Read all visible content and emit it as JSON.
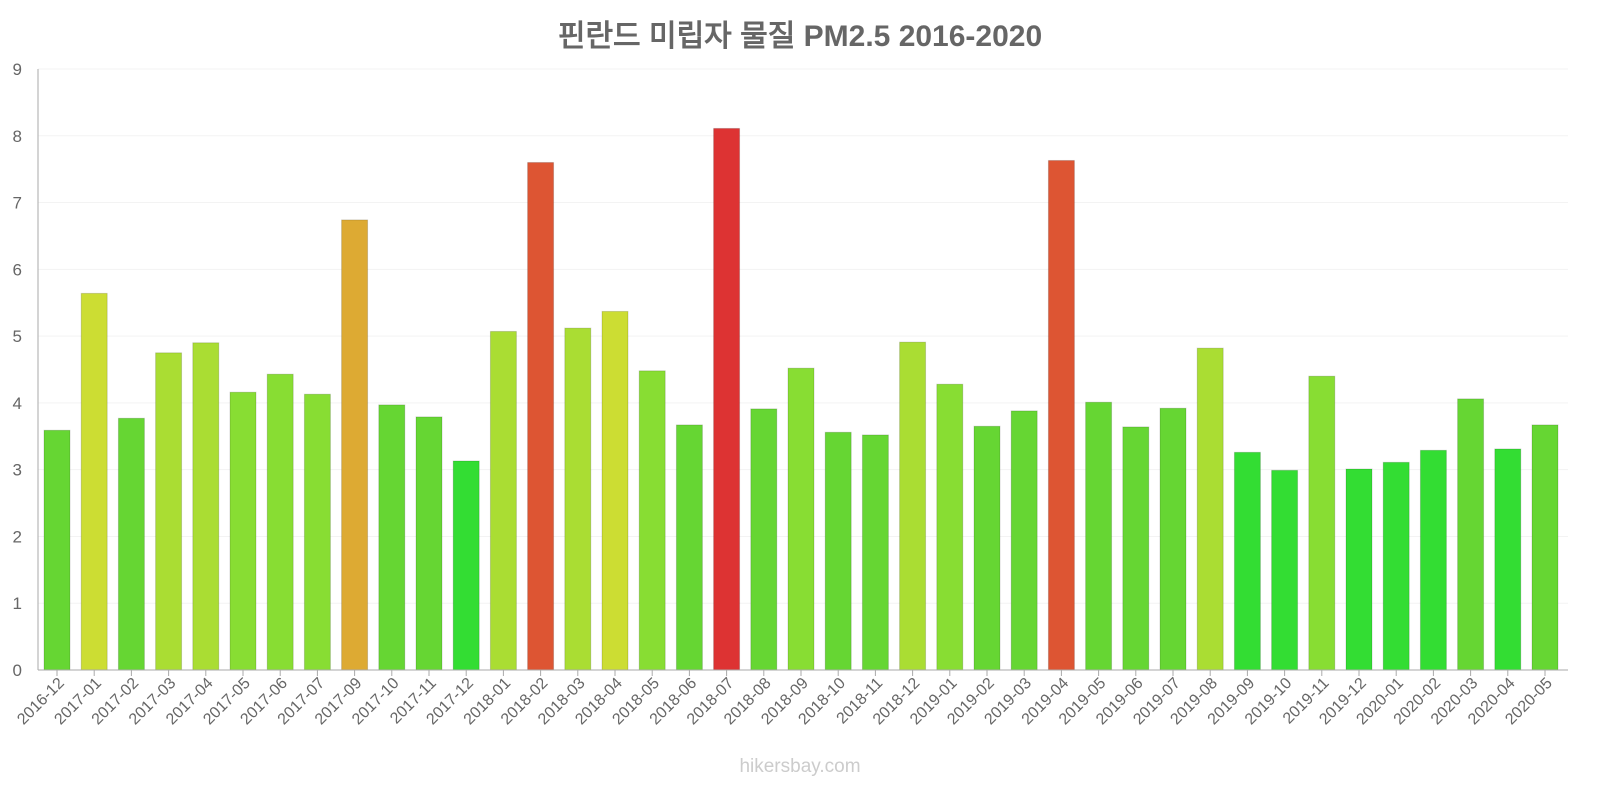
{
  "chart_data": {
    "type": "bar",
    "title": "핀란드 미립자 물질 PM2.5 2016-2020",
    "xlabel": "",
    "ylabel": "",
    "ylim": [
      0,
      9
    ],
    "yticks": [
      "0",
      "1",
      "2",
      "3",
      "4",
      "5",
      "6",
      "7",
      "8",
      "9"
    ],
    "grid": true,
    "categories": [
      "2016-12",
      "2017-01",
      "2017-02",
      "2017-03",
      "2017-04",
      "2017-05",
      "2017-06",
      "2017-07",
      "2017-09",
      "2017-10",
      "2017-11",
      "2017-12",
      "2018-01",
      "2018-02",
      "2018-03",
      "2018-04",
      "2018-05",
      "2018-06",
      "2018-07",
      "2018-08",
      "2018-09",
      "2018-10",
      "2018-11",
      "2018-12",
      "2019-01",
      "2019-02",
      "2019-03",
      "2019-04",
      "2019-05",
      "2019-06",
      "2019-07",
      "2019-08",
      "2019-09",
      "2019-10",
      "2019-11",
      "2019-12",
      "2020-01",
      "2020-02",
      "2020-03",
      "2020-04",
      "2020-05"
    ],
    "values": [
      3.59,
      5.64,
      3.77,
      4.75,
      4.9,
      4.16,
      4.43,
      4.13,
      6.74,
      3.97,
      3.79,
      3.13,
      5.07,
      7.6,
      5.12,
      5.37,
      4.48,
      3.67,
      8.11,
      3.91,
      4.52,
      3.56,
      3.52,
      4.91,
      4.28,
      3.65,
      3.88,
      7.63,
      4.01,
      3.64,
      3.92,
      4.82,
      3.26,
      2.99,
      4.4,
      3.01,
      3.11,
      3.29,
      4.06,
      3.31,
      3.67
    ],
    "colors": [
      "#66d633",
      "#ccdd33",
      "#66d633",
      "#aadd33",
      "#aadd33",
      "#88dd33",
      "#88dd33",
      "#88dd33",
      "#ddaa33",
      "#66d633",
      "#66d633",
      "#33dd33",
      "#aadd33",
      "#dd5533",
      "#aadd33",
      "#ccdd33",
      "#88dd33",
      "#66d633",
      "#dd3333",
      "#66d633",
      "#88dd33",
      "#66d633",
      "#66d633",
      "#aadd33",
      "#88dd33",
      "#66d633",
      "#66d633",
      "#dd5533",
      "#66d633",
      "#66d633",
      "#66d633",
      "#aadd33",
      "#33dd33",
      "#33dd33",
      "#88dd33",
      "#33dd33",
      "#33dd33",
      "#33dd33",
      "#66d633",
      "#33dd33",
      "#66d633"
    ]
  },
  "watermark": "hikersbay.com"
}
